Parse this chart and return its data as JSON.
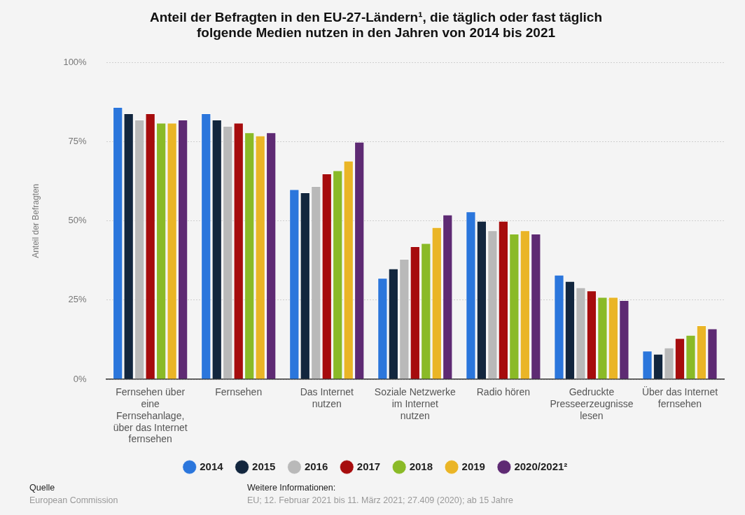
{
  "chart_data": {
    "type": "bar",
    "title": "Anteil der Befragten in den EU-27-Ländern¹, die täglich oder fast täglich folgende Medien nutzen in den Jahren von 2014 bis 2021",
    "ylabel": "Anteil der Befragten",
    "categories": [
      "Fernsehen über eine Fernsehanlage, über das Internet fernsehen",
      "Fernsehen",
      "Das Internet nutzen",
      "Soziale Netzwerke im Internet nutzen",
      "Radio hören",
      "Gedruckte Presseerzeugnisse lesen",
      "Über das Internet fernsehen"
    ],
    "series": [
      {
        "name": "2014",
        "color": "#2b76dc",
        "values": [
          86,
          84,
          60,
          32,
          53,
          33,
          9
        ]
      },
      {
        "name": "2015",
        "color": "#12263e",
        "values": [
          84,
          82,
          59,
          35,
          50,
          31,
          8
        ]
      },
      {
        "name": "2016",
        "color": "#b9b9b9",
        "values": [
          82,
          80,
          61,
          38,
          47,
          29,
          10
        ]
      },
      {
        "name": "2017",
        "color": "#a60c0d",
        "values": [
          84,
          81,
          65,
          42,
          50,
          28,
          13
        ]
      },
      {
        "name": "2018",
        "color": "#8aba27",
        "values": [
          81,
          78,
          66,
          43,
          46,
          26,
          14
        ]
      },
      {
        "name": "2019",
        "color": "#eab526",
        "values": [
          81,
          77,
          69,
          48,
          47,
          26,
          17
        ]
      },
      {
        "name": "2020/2021²",
        "color": "#5e2a73",
        "values": [
          82,
          78,
          75,
          52,
          46,
          25,
          16
        ]
      }
    ],
    "ylim": [
      0,
      100
    ],
    "yticks": [
      {
        "value": 0,
        "label": "0%"
      },
      {
        "value": 25,
        "label": "25%"
      },
      {
        "value": 50,
        "label": "50%"
      },
      {
        "value": 75,
        "label": "75%"
      },
      {
        "value": 100,
        "label": "100%"
      }
    ],
    "grid": "y",
    "legend": "bottom",
    "annotations": [
      "Quelle",
      "European Commission",
      "Weitere Informationen:",
      "EU; 12. Februar 2021 bis 11. März 2021; 27.409 (2020); ab 15 Jahre"
    ]
  }
}
